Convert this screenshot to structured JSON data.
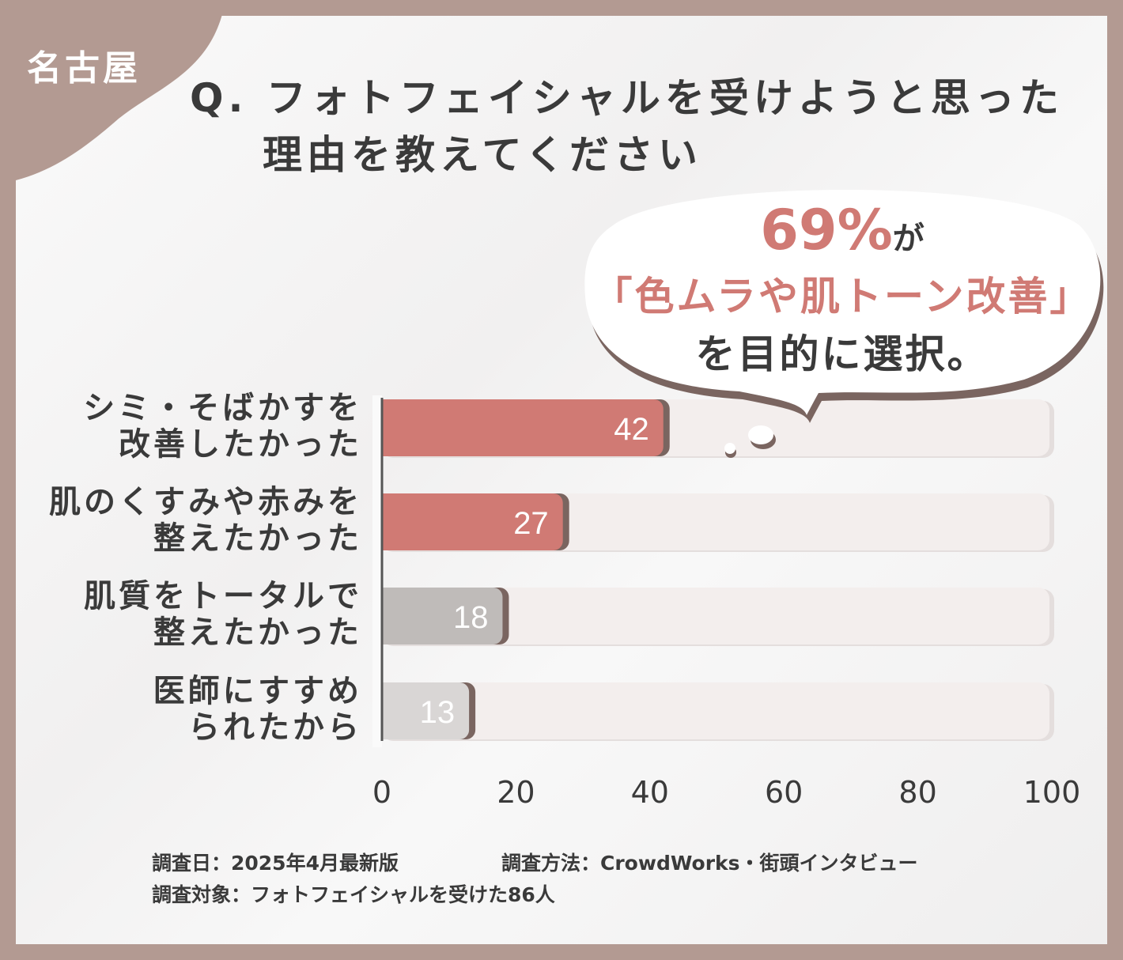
{
  "city_tag": "名古屋",
  "title": {
    "line1": "Q. フォトフェイシャルを受けようと思った",
    "line2": "理由を教えてください"
  },
  "callout": {
    "percent": "69%",
    "particle": "が",
    "highlight": "「色ムラや肌トーン改善」",
    "tail": "を目的に選択。"
  },
  "colors": {
    "frame": "#b39a92",
    "accent": "#d07a74",
    "gray": "#bfbbb9",
    "light_gray": "#d9d6d5",
    "track": "#f3eeed"
  },
  "chart_data": {
    "type": "bar",
    "orientation": "horizontal",
    "categories": [
      "シミ・そばかすを\n改善したかった",
      "肌のくすみや赤みを\n整えたかった",
      "肌質をトータルで\n整えたかった",
      "医師にすすめ\nられたから"
    ],
    "values": [
      42,
      27,
      18,
      13
    ],
    "value_labels": [
      "42",
      "27",
      "18",
      "13"
    ],
    "bar_colors": [
      "#d07a74",
      "#d07a74",
      "#bfbbb9",
      "#d9d6d5"
    ],
    "xlim": [
      0,
      100
    ],
    "xticks": [
      "0",
      "20",
      "40",
      "60",
      "80",
      "100"
    ],
    "grid": false
  },
  "footer": {
    "date": "調査日：2025年4月最新版",
    "method": "調査方法：CrowdWorks・街頭インタビュー",
    "target": "調査対象：フォトフェイシャルを受けた86人"
  }
}
